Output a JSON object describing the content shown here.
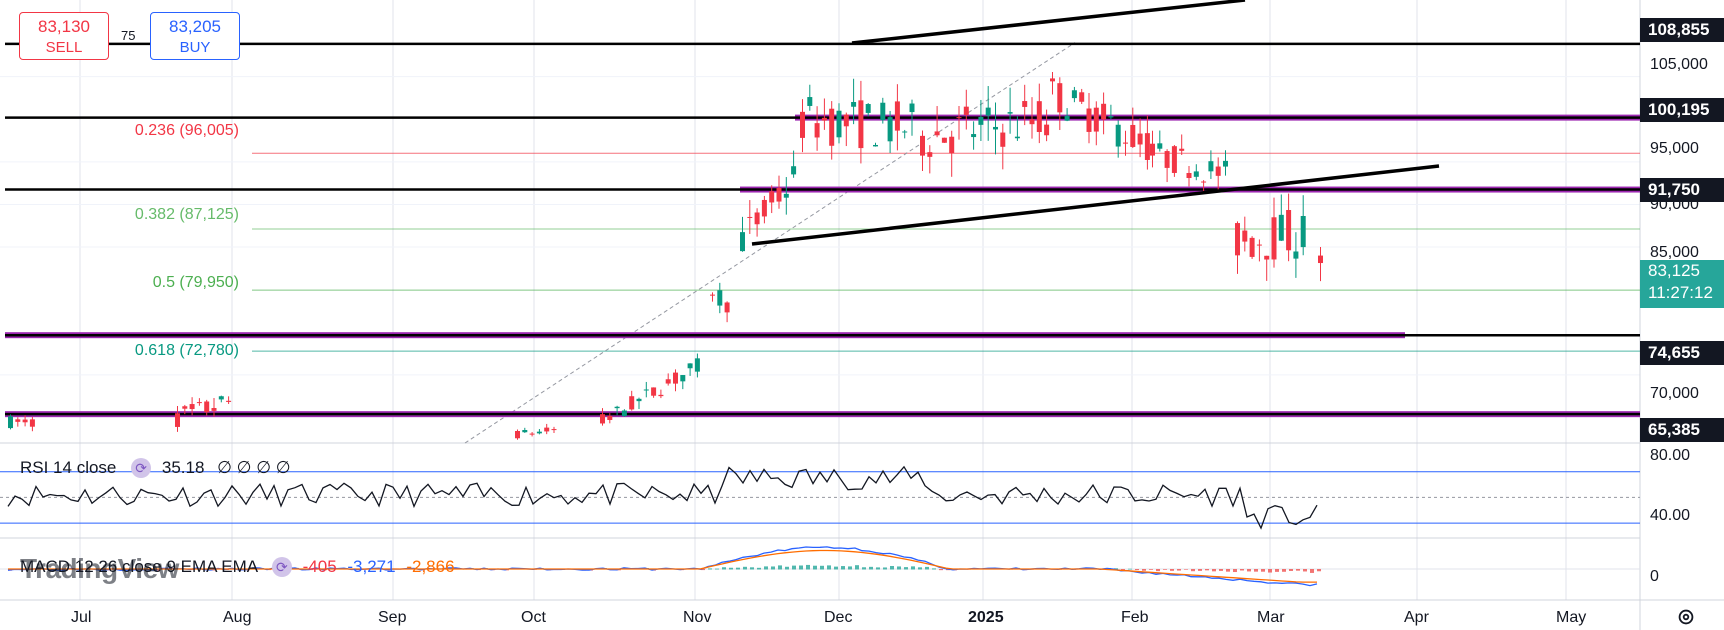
{
  "trade": {
    "sell_price": "83,130",
    "sell_label": "SELL",
    "buy_price": "83,205",
    "buy_label": "BUY",
    "spread": "75"
  },
  "price_axis": {
    "ticks": [
      "105,000",
      "95,000",
      "90,000",
      "85,000",
      "70,000"
    ],
    "levels": [
      {
        "label": "108,855",
        "value": 108855
      },
      {
        "label": "100,195",
        "value": 100195
      },
      {
        "label": "91,750",
        "value": 91750
      },
      {
        "label": "74,655",
        "value": 74655
      },
      {
        "label": "65,385",
        "value": 65385
      }
    ],
    "current_price": "83,125",
    "countdown": "11:27:12"
  },
  "fib_levels": [
    {
      "label": "0.236 (96,005)",
      "value": 96005,
      "color": "#f23645"
    },
    {
      "label": "0.382 (87,125)",
      "value": 87125,
      "color": "#66bb6a"
    },
    {
      "label": "0.5 (79,950)",
      "value": 79950,
      "color": "#4caf50"
    },
    {
      "label": "0.618 (72,780)",
      "value": 72780,
      "color": "#089981"
    }
  ],
  "time_axis": [
    "Jul",
    "Aug",
    "Sep",
    "Oct",
    "Nov",
    "Dec",
    "2025",
    "Feb",
    "Mar",
    "Apr",
    "May"
  ],
  "rsi": {
    "name": "RSI 14 close",
    "value": "35.18",
    "extras": "∅ ∅ ∅ ∅",
    "ticks": [
      "80.00",
      "40.00"
    ]
  },
  "macd": {
    "name": "MACD 12 26 close 9 EMA EMA",
    "hist": "-405",
    "macd": "-3,271",
    "signal": "-2,866",
    "tick": "0"
  },
  "logo_text": "TradingView",
  "colors": {
    "up": "#089981",
    "down": "#f23645",
    "purple": "#9c27b0",
    "axis_badge": "#131722",
    "current_badge": "#26a69a",
    "macd_line": "#2962ff",
    "signal_line": "#ff6d00"
  },
  "chart_data": {
    "type": "candlestick",
    "price_range": [
      62000,
      114000
    ],
    "candles_approx": [
      {
        "period": "Jul",
        "open": 64500,
        "close": 66000,
        "high": 67500,
        "low": 64000
      },
      {
        "period": "Aug",
        "open": 66000,
        "close": 67000,
        "high": 70500,
        "low": 64500
      },
      {
        "period": "Oct",
        "open": 63000,
        "close": 64500,
        "high": 66000,
        "low": 62000
      },
      {
        "period": "Nov-early",
        "open": 68000,
        "close": 76000,
        "high": 77500,
        "low": 66000
      },
      {
        "period": "Nov-mid",
        "open": 80000,
        "close": 90000,
        "high": 93500,
        "low": 79000
      },
      {
        "period": "Dec",
        "open": 96000,
        "close": 101000,
        "high": 108000,
        "low": 91000
      },
      {
        "period": "Jan",
        "open": 94000,
        "close": 104000,
        "high": 109000,
        "low": 90000
      },
      {
        "period": "Feb",
        "open": 100000,
        "close": 95000,
        "high": 106000,
        "low": 94000
      },
      {
        "period": "Mar",
        "open": 86000,
        "close": 83125,
        "high": 94000,
        "low": 78000
      }
    ],
    "rsi_range": [
      20,
      90
    ],
    "rsi_levels": [
      70,
      30
    ],
    "macd_range": [
      -6000,
      6000
    ]
  }
}
